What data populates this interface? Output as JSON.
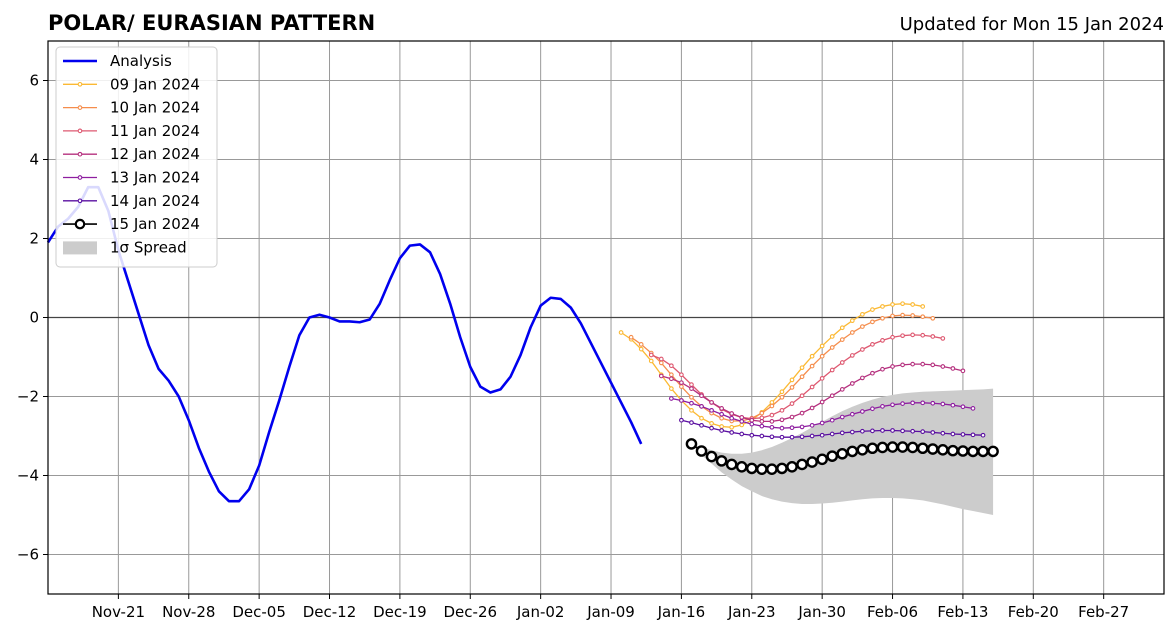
{
  "chart_data": {
    "type": "line",
    "title": "POLAR/ EURASIAN  PATTERN",
    "updated": "Updated for Mon 15 Jan 2024",
    "xlabel": "",
    "ylabel": "",
    "ylim": [
      -7,
      7
    ],
    "yticks": [
      -6,
      -4,
      -2,
      0,
      2,
      4,
      6
    ],
    "ytick_labels": [
      "−6",
      "−4",
      "−2",
      "0",
      "2",
      "4",
      "6"
    ],
    "xlim": [
      "2023-11-14",
      "2024-03-04"
    ],
    "xticks": [
      "2023-11-21",
      "2023-11-28",
      "2023-12-05",
      "2023-12-12",
      "2023-12-19",
      "2023-12-26",
      "2024-01-02",
      "2024-01-09",
      "2024-01-16",
      "2024-01-23",
      "2024-01-30",
      "2024-02-06",
      "2024-02-13",
      "2024-02-20",
      "2024-02-27"
    ],
    "xtick_labels": [
      "Nov-21",
      "Nov-28",
      "Dec-05",
      "Dec-12",
      "Dec-19",
      "Dec-26",
      "Jan-02",
      "Jan-09",
      "Jan-16",
      "Jan-23",
      "Jan-30",
      "Feb-06",
      "Feb-13",
      "Feb-20",
      "Feb-27"
    ],
    "grid": true,
    "legend_position": "top-left",
    "legend_labels": [
      "Analysis",
      "09 Jan 2024",
      "10 Jan 2024",
      "11 Jan 2024",
      "12 Jan 2024",
      "13 Jan 2024",
      "14 Jan 2024",
      "15 Jan 2024",
      "1σ Spread"
    ],
    "analysis": {
      "name": "Analysis",
      "color": "#0000ee",
      "start": "2023-11-14",
      "values": [
        1.9,
        2.3,
        2.5,
        2.8,
        3.3,
        3.3,
        2.7,
        1.7,
        0.9,
        0.1,
        -0.7,
        -1.3,
        -1.6,
        -2.0,
        -2.6,
        -3.3,
        -3.9,
        -4.4,
        -4.65,
        -4.65,
        -4.35,
        -3.75,
        -2.9,
        -2.1,
        -1.25,
        -0.45,
        0.0,
        0.07,
        0.0,
        -0.1,
        -0.1,
        -0.12,
        -0.05,
        0.35,
        0.95,
        1.5,
        1.82,
        1.85,
        1.65,
        1.1,
        0.35,
        -0.5,
        -1.25,
        -1.75,
        -1.9,
        -1.82,
        -1.5,
        -0.95,
        -0.25,
        0.3,
        0.5,
        0.47,
        0.25,
        -0.15,
        -0.65,
        -1.15,
        -1.65,
        -2.15,
        -2.65,
        -3.2
      ]
    },
    "forecasts": [
      {
        "name": "09 Jan 2024",
        "color": "#fbb933",
        "start": "2024-01-10",
        "values": [
          -0.38,
          -0.55,
          -0.8,
          -1.1,
          -1.45,
          -1.8,
          -2.1,
          -2.35,
          -2.55,
          -2.68,
          -2.76,
          -2.78,
          -2.72,
          -2.6,
          -2.4,
          -2.15,
          -1.88,
          -1.58,
          -1.27,
          -0.98,
          -0.72,
          -0.48,
          -0.26,
          -0.08,
          0.08,
          0.2,
          0.28,
          0.33,
          0.35,
          0.33,
          0.28
        ]
      },
      {
        "name": "10 Jan 2024",
        "color": "#f58d4c",
        "start": "2024-01-11",
        "values": [
          -0.5,
          -0.68,
          -0.9,
          -1.15,
          -1.45,
          -1.75,
          -2.02,
          -2.25,
          -2.42,
          -2.55,
          -2.62,
          -2.62,
          -2.55,
          -2.42,
          -2.24,
          -2.02,
          -1.77,
          -1.5,
          -1.23,
          -0.98,
          -0.76,
          -0.56,
          -0.38,
          -0.23,
          -0.11,
          -0.02,
          0.04,
          0.06,
          0.05,
          0.02,
          -0.02
        ]
      },
      {
        "name": "11 Jan 2024",
        "color": "#de5870",
        "start": "2024-01-13",
        "values": [
          -0.95,
          -1.05,
          -1.22,
          -1.45,
          -1.7,
          -1.95,
          -2.15,
          -2.32,
          -2.45,
          -2.53,
          -2.56,
          -2.54,
          -2.47,
          -2.35,
          -2.18,
          -1.98,
          -1.76,
          -1.54,
          -1.33,
          -1.14,
          -0.96,
          -0.81,
          -0.68,
          -0.58,
          -0.5,
          -0.46,
          -0.44,
          -0.45,
          -0.48,
          -0.53
        ]
      },
      {
        "name": "12 Jan 2024",
        "color": "#b5307e",
        "start": "2024-01-14",
        "values": [
          -1.48,
          -1.55,
          -1.65,
          -1.8,
          -1.98,
          -2.15,
          -2.3,
          -2.43,
          -2.53,
          -2.6,
          -2.63,
          -2.63,
          -2.59,
          -2.52,
          -2.42,
          -2.29,
          -2.14,
          -1.98,
          -1.82,
          -1.67,
          -1.53,
          -1.41,
          -1.31,
          -1.24,
          -1.2,
          -1.18,
          -1.18,
          -1.2,
          -1.24,
          -1.29,
          -1.35
        ]
      },
      {
        "name": "13 Jan 2024",
        "color": "#8e1ea0",
        "start": "2024-01-15",
        "values": [
          -2.05,
          -2.1,
          -2.17,
          -2.25,
          -2.35,
          -2.45,
          -2.55,
          -2.63,
          -2.7,
          -2.75,
          -2.78,
          -2.8,
          -2.79,
          -2.77,
          -2.73,
          -2.67,
          -2.6,
          -2.52,
          -2.45,
          -2.38,
          -2.31,
          -2.25,
          -2.21,
          -2.18,
          -2.16,
          -2.16,
          -2.17,
          -2.19,
          -2.22,
          -2.26,
          -2.3
        ]
      },
      {
        "name": "14 Jan 2024",
        "color": "#5a0fa0",
        "start": "2024-01-16",
        "values": [
          -2.6,
          -2.66,
          -2.73,
          -2.8,
          -2.86,
          -2.91,
          -2.95,
          -2.98,
          -3.0,
          -3.02,
          -3.03,
          -3.03,
          -3.02,
          -3.0,
          -2.98,
          -2.95,
          -2.92,
          -2.9,
          -2.88,
          -2.87,
          -2.86,
          -2.86,
          -2.87,
          -2.88,
          -2.89,
          -2.91,
          -2.93,
          -2.95,
          -2.96,
          -2.97,
          -2.98
        ]
      },
      {
        "name": "15 Jan 2024",
        "color": "#000000",
        "start": "2024-01-17",
        "values": [
          -3.2,
          -3.38,
          -3.52,
          -3.63,
          -3.72,
          -3.78,
          -3.82,
          -3.84,
          -3.84,
          -3.82,
          -3.78,
          -3.72,
          -3.66,
          -3.59,
          -3.51,
          -3.45,
          -3.39,
          -3.35,
          -3.31,
          -3.29,
          -3.28,
          -3.28,
          -3.29,
          -3.31,
          -3.33,
          -3.35,
          -3.37,
          -3.38,
          -3.39,
          -3.39,
          -3.39
        ]
      }
    ],
    "spread": {
      "name": "1σ Spread",
      "color": "#cccccc",
      "start": "2024-01-17",
      "upper": [
        -3.2,
        -3.28,
        -3.36,
        -3.42,
        -3.45,
        -3.45,
        -3.42,
        -3.36,
        -3.28,
        -3.17,
        -3.05,
        -2.92,
        -2.78,
        -2.64,
        -2.5,
        -2.37,
        -2.26,
        -2.16,
        -2.08,
        -2.01,
        -1.96,
        -1.92,
        -1.9,
        -1.88,
        -1.87,
        -1.86,
        -1.85,
        -1.84,
        -1.83,
        -1.82,
        -1.8
      ],
      "lower": [
        -3.2,
        -3.48,
        -3.7,
        -3.92,
        -4.1,
        -4.27,
        -4.4,
        -4.52,
        -4.6,
        -4.66,
        -4.7,
        -4.72,
        -4.72,
        -4.71,
        -4.69,
        -4.66,
        -4.63,
        -4.6,
        -4.58,
        -4.57,
        -4.57,
        -4.58,
        -4.6,
        -4.63,
        -4.68,
        -4.73,
        -4.79,
        -4.85,
        -4.9,
        -4.95,
        -5.0
      ]
    }
  }
}
